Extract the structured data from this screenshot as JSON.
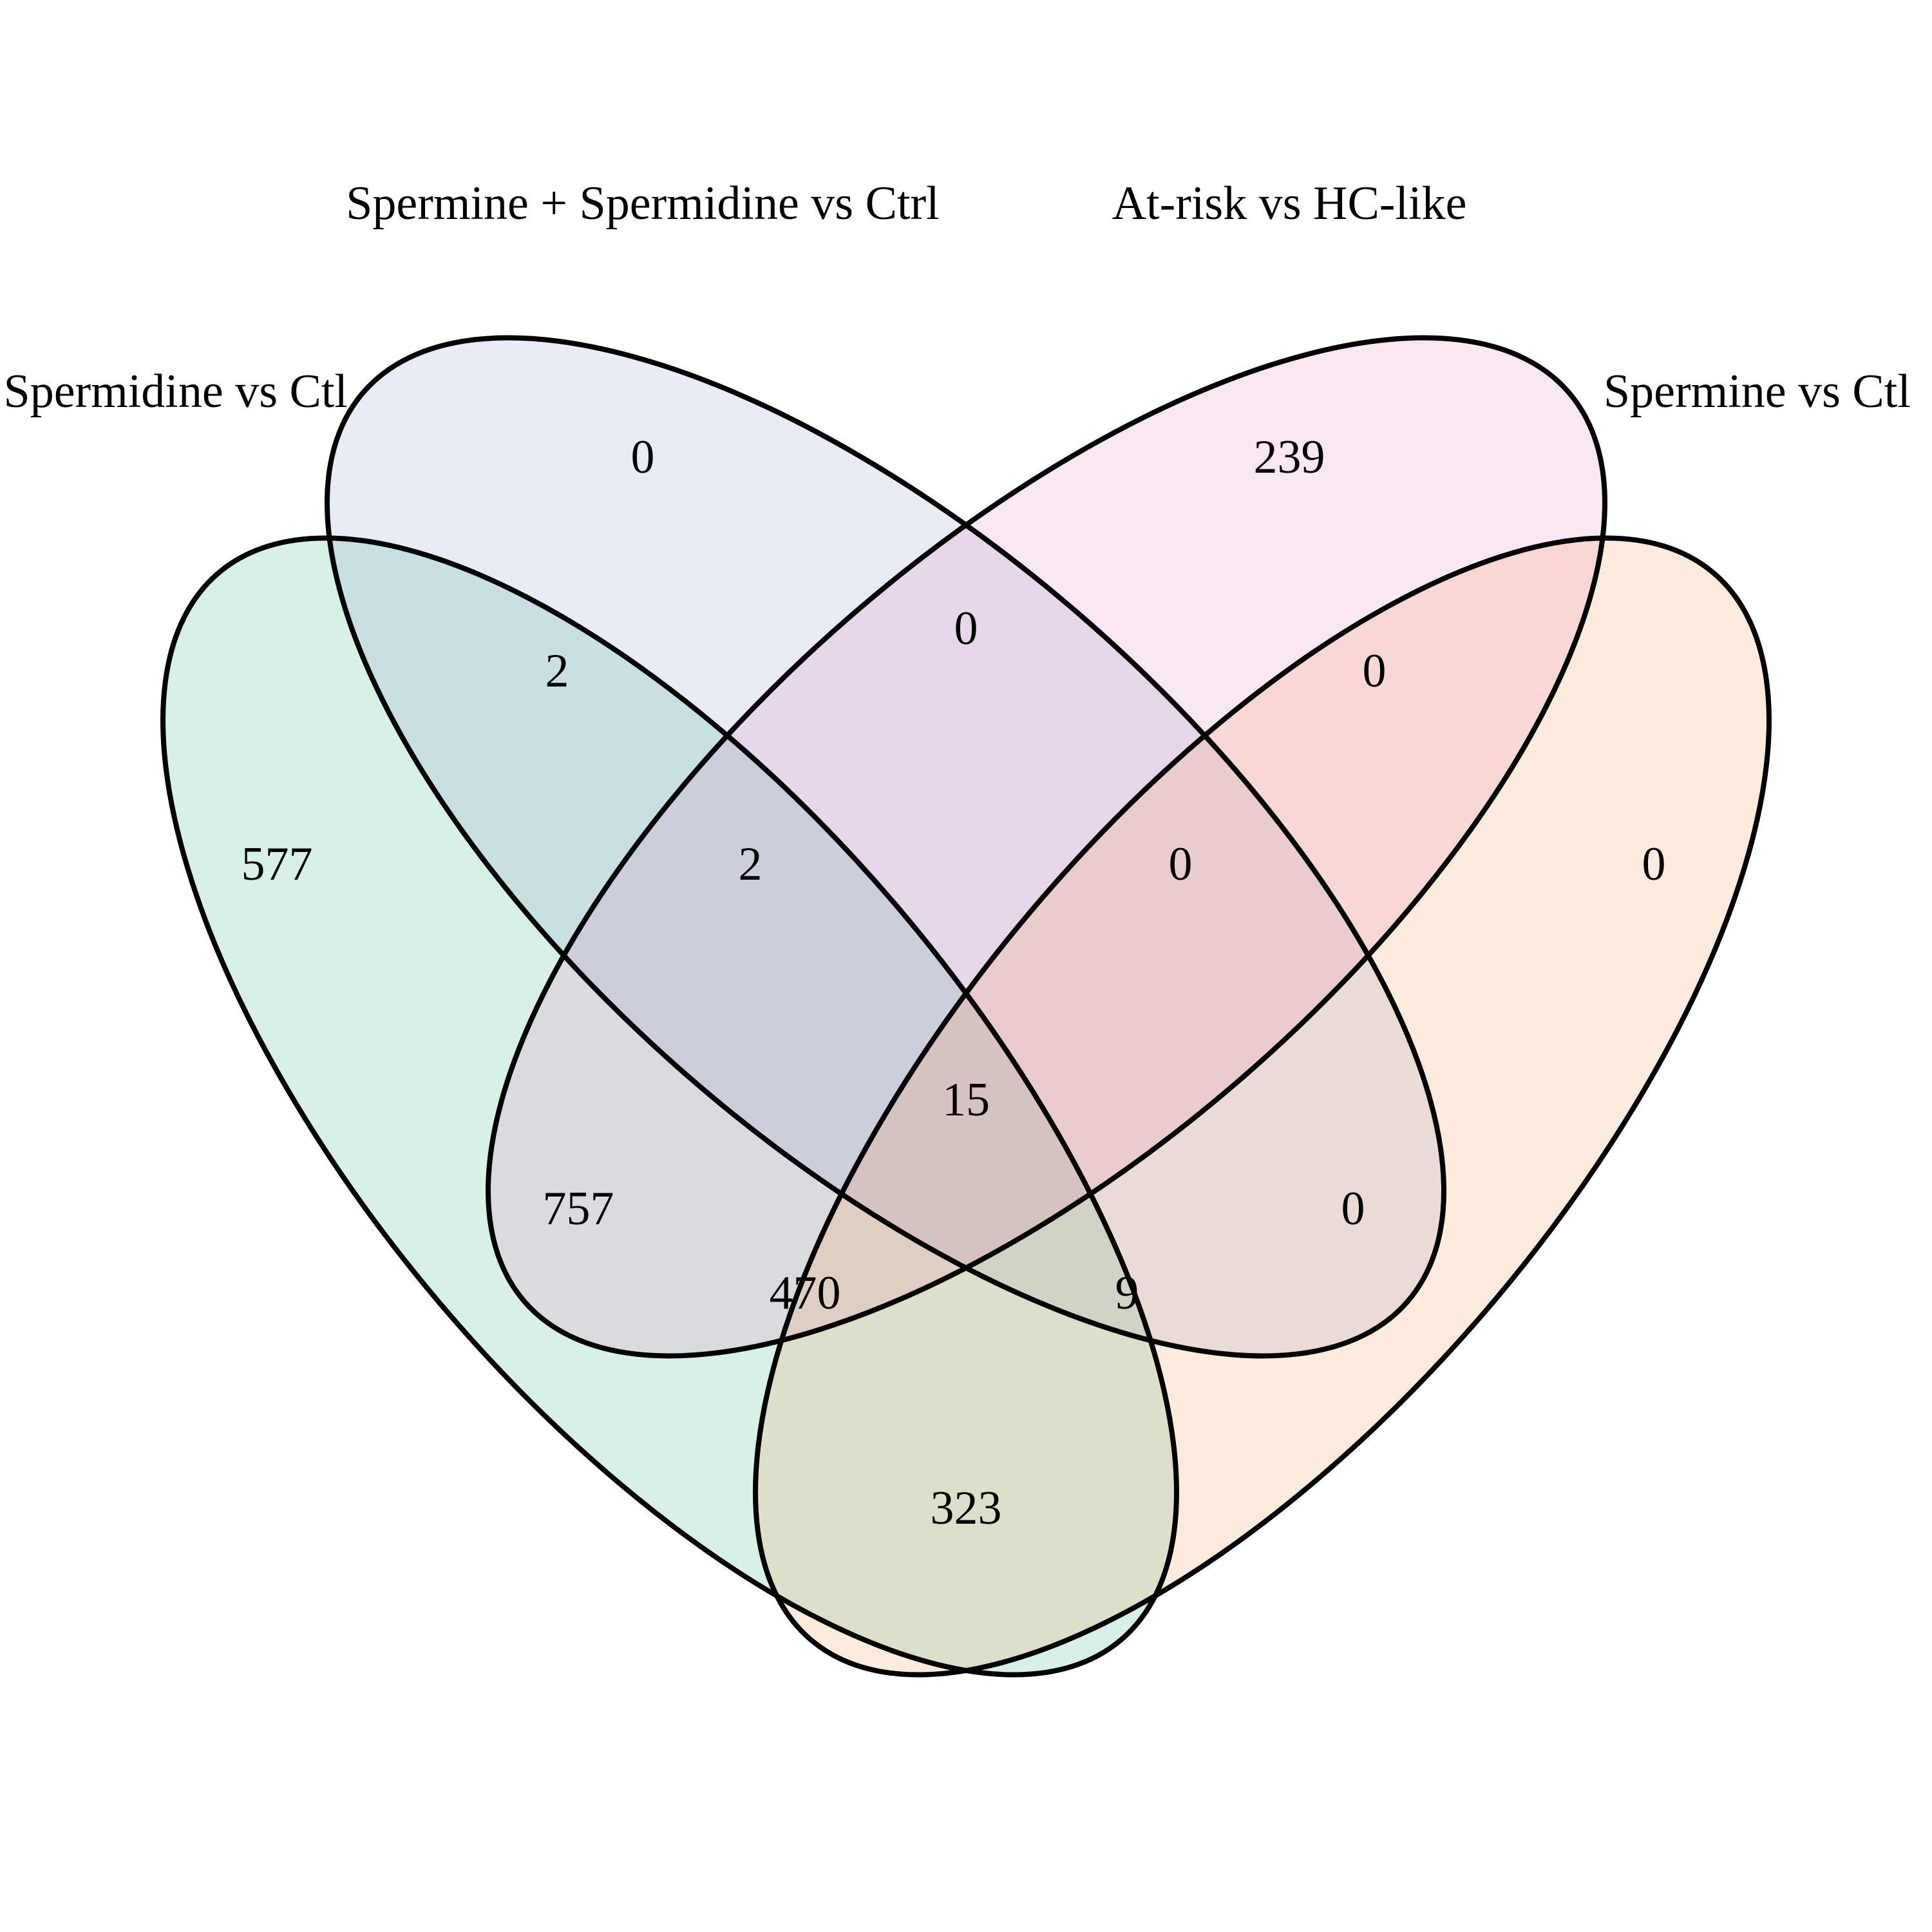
{
  "sets": [
    {
      "id": "A",
      "label": "Spermidine vs Ctl",
      "color": "#3cb982",
      "opacity": 0.2
    },
    {
      "id": "B",
      "label": "Spermine + Spermidine vs Ctrl",
      "color": "#8c9fcb",
      "opacity": 0.2
    },
    {
      "id": "C",
      "label": "At-risk vs HC-like",
      "color": "#e389c2",
      "opacity": 0.2
    },
    {
      "id": "D",
      "label": "Spermine vs Ctl",
      "color": "#fb9a59",
      "opacity": 0.2
    }
  ],
  "regions": [
    {
      "sets": "A",
      "count": "577"
    },
    {
      "sets": "B",
      "count": "0"
    },
    {
      "sets": "C",
      "count": "239"
    },
    {
      "sets": "D",
      "count": "0"
    },
    {
      "sets": "AB",
      "count": "2"
    },
    {
      "sets": "BC",
      "count": "0"
    },
    {
      "sets": "CD",
      "count": "0"
    },
    {
      "sets": "ABC",
      "count": "2"
    },
    {
      "sets": "BCD",
      "count": "0"
    },
    {
      "sets": "ABCD",
      "count": "15"
    },
    {
      "sets": "AC",
      "count": "757"
    },
    {
      "sets": "BD",
      "count": "0"
    },
    {
      "sets": "ACD",
      "count": "470"
    },
    {
      "sets": "ABD",
      "count": "9"
    },
    {
      "sets": "AD",
      "count": "323"
    }
  ]
}
